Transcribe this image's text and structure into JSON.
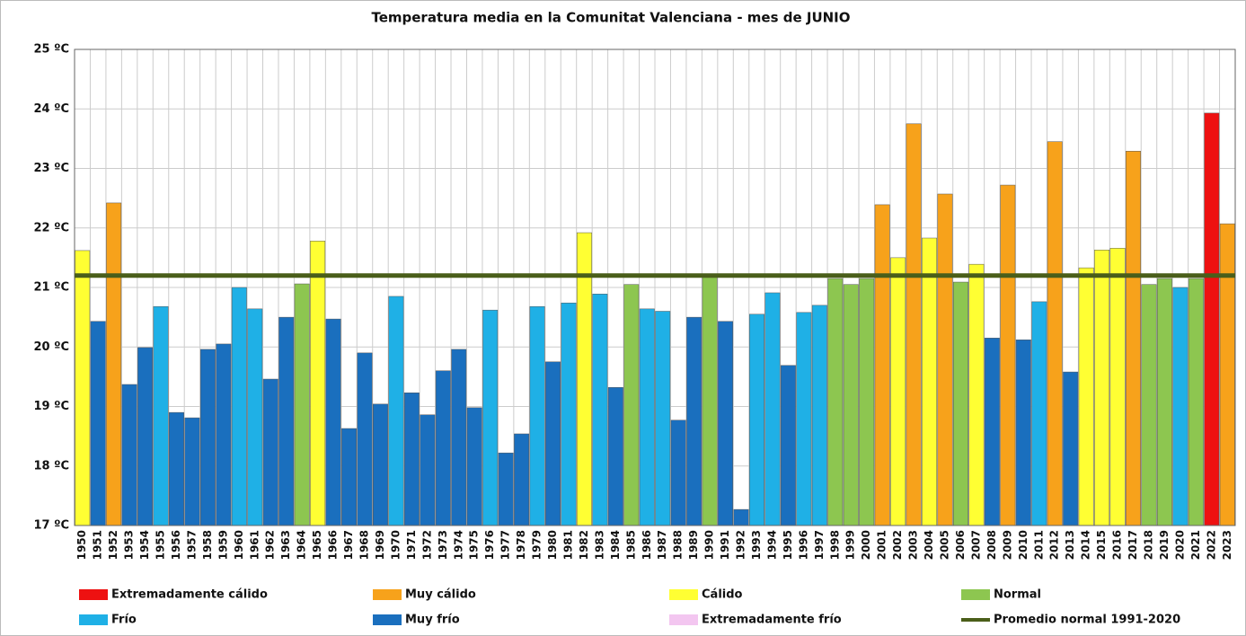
{
  "chart_data": {
    "type": "bar",
    "title": "Temperatura media en la Comunitat Valenciana - mes de JUNIO",
    "categories": [
      "1950",
      "1951",
      "1952",
      "1953",
      "1954",
      "1955",
      "1956",
      "1957",
      "1958",
      "1959",
      "1960",
      "1961",
      "1962",
      "1963",
      "1964",
      "1965",
      "1966",
      "1967",
      "1968",
      "1969",
      "1970",
      "1971",
      "1972",
      "1973",
      "1974",
      "1975",
      "1976",
      "1977",
      "1978",
      "1979",
      "1980",
      "1981",
      "1982",
      "1983",
      "1984",
      "1985",
      "1986",
      "1987",
      "1988",
      "1989",
      "1990",
      "1991",
      "1992",
      "1993",
      "1994",
      "1995",
      "1996",
      "1997",
      "1998",
      "1999",
      "2000",
      "2001",
      "2002",
      "2003",
      "2004",
      "2005",
      "2006",
      "2007",
      "2008",
      "2009",
      "2010",
      "2011",
      "2012",
      "2013",
      "2014",
      "2015",
      "2016",
      "2017",
      "2018",
      "2019",
      "2020",
      "2021",
      "2022",
      "2023"
    ],
    "series": [
      {
        "name": "Extremadamente cálido",
        "color": "#ee1111",
        "values": [
          null,
          null,
          null,
          null,
          null,
          null,
          null,
          null,
          null,
          null,
          null,
          null,
          null,
          null,
          null,
          null,
          null,
          null,
          null,
          null,
          null,
          null,
          null,
          null,
          null,
          null,
          null,
          null,
          null,
          null,
          null,
          null,
          null,
          null,
          null,
          null,
          null,
          null,
          null,
          null,
          null,
          null,
          null,
          null,
          null,
          null,
          null,
          null,
          null,
          null,
          null,
          null,
          null,
          null,
          null,
          null,
          null,
          null,
          null,
          null,
          null,
          null,
          null,
          null,
          null,
          null,
          null,
          null,
          null,
          null,
          null,
          null,
          23.93,
          null
        ]
      },
      {
        "name": "Muy cálido",
        "color": "#f7a21b",
        "values": [
          null,
          null,
          22.42,
          null,
          null,
          null,
          null,
          null,
          null,
          null,
          null,
          null,
          null,
          null,
          null,
          null,
          null,
          null,
          null,
          null,
          null,
          null,
          null,
          null,
          null,
          null,
          null,
          null,
          null,
          null,
          null,
          null,
          null,
          null,
          null,
          null,
          null,
          null,
          null,
          null,
          null,
          null,
          null,
          null,
          null,
          null,
          null,
          null,
          null,
          null,
          null,
          22.39,
          null,
          23.75,
          null,
          22.57,
          null,
          null,
          null,
          22.72,
          null,
          null,
          23.45,
          null,
          null,
          null,
          null,
          23.29,
          null,
          null,
          null,
          null,
          null,
          22.07
        ]
      },
      {
        "name": "Cálido",
        "color": "#ffff33",
        "values": [
          21.62,
          null,
          null,
          null,
          null,
          null,
          null,
          null,
          null,
          null,
          null,
          null,
          null,
          null,
          null,
          21.78,
          null,
          null,
          null,
          null,
          null,
          null,
          null,
          null,
          null,
          null,
          null,
          null,
          null,
          null,
          null,
          null,
          21.92,
          null,
          null,
          null,
          null,
          null,
          null,
          null,
          null,
          null,
          null,
          null,
          null,
          null,
          null,
          null,
          null,
          null,
          null,
          null,
          21.5,
          null,
          21.83,
          null,
          null,
          21.39,
          null,
          null,
          null,
          null,
          null,
          null,
          21.33,
          21.63,
          21.66,
          null,
          null,
          null,
          null,
          null,
          null,
          null
        ]
      },
      {
        "name": "Normal",
        "color": "#8dc650",
        "values": [
          null,
          null,
          null,
          null,
          null,
          null,
          null,
          null,
          null,
          null,
          null,
          null,
          null,
          null,
          21.06,
          null,
          null,
          null,
          null,
          null,
          null,
          null,
          null,
          null,
          null,
          null,
          null,
          null,
          null,
          null,
          null,
          null,
          null,
          null,
          null,
          21.05,
          null,
          null,
          null,
          null,
          21.18,
          null,
          null,
          null,
          null,
          null,
          null,
          null,
          21.15,
          21.05,
          21.15,
          null,
          null,
          null,
          null,
          null,
          21.09,
          null,
          null,
          null,
          null,
          null,
          null,
          null,
          null,
          null,
          null,
          null,
          21.05,
          21.15,
          null,
          21.15,
          null,
          null
        ]
      },
      {
        "name": "Frío",
        "color": "#1fb0e6",
        "values": [
          null,
          null,
          null,
          null,
          null,
          20.68,
          null,
          null,
          null,
          null,
          21.0,
          20.64,
          null,
          null,
          null,
          null,
          null,
          null,
          null,
          null,
          20.85,
          null,
          null,
          null,
          null,
          null,
          20.62,
          null,
          null,
          20.68,
          null,
          20.74,
          null,
          20.89,
          null,
          null,
          20.64,
          20.6,
          null,
          null,
          null,
          null,
          null,
          20.55,
          20.91,
          null,
          20.58,
          20.7,
          null,
          null,
          null,
          null,
          null,
          null,
          null,
          null,
          null,
          null,
          null,
          null,
          null,
          20.76,
          null,
          null,
          null,
          null,
          null,
          null,
          null,
          null,
          21.0,
          null,
          null,
          null
        ]
      },
      {
        "name": "Muy frío",
        "color": "#1a6fbe",
        "values": [
          null,
          20.43,
          null,
          19.37,
          19.99,
          null,
          18.9,
          18.81,
          19.96,
          20.05,
          null,
          null,
          19.46,
          20.5,
          null,
          null,
          20.47,
          18.63,
          19.9,
          19.04,
          null,
          19.23,
          18.86,
          19.6,
          19.96,
          18.98,
          null,
          18.22,
          18.54,
          null,
          19.75,
          null,
          null,
          null,
          19.32,
          null,
          null,
          null,
          18.77,
          20.5,
          null,
          20.43,
          17.27,
          null,
          null,
          19.69,
          null,
          null,
          null,
          null,
          null,
          null,
          null,
          null,
          null,
          null,
          null,
          null,
          20.15,
          null,
          20.12,
          null,
          null,
          19.58,
          null,
          null,
          null,
          null,
          null,
          null,
          null,
          null,
          null,
          null
        ]
      },
      {
        "name": "Extremadamente frío",
        "color": "#f3c6f0"
      }
    ],
    "reference_line": {
      "name": "Promedio normal 1991-2020",
      "value": 21.2,
      "color": "#4a5e1a"
    },
    "ylim": [
      17,
      25
    ],
    "yticks": [
      {
        "value": 17,
        "label": "17 ºC"
      },
      {
        "value": 18,
        "label": "18 ºC"
      },
      {
        "value": 19,
        "label": "19 ºC"
      },
      {
        "value": 20,
        "label": "20 ºC"
      },
      {
        "value": 21,
        "label": "21 ºC"
      },
      {
        "value": 22,
        "label": "22 ºC"
      },
      {
        "value": 23,
        "label": "23 ºC"
      },
      {
        "value": 24,
        "label": "24 ºC"
      },
      {
        "value": 25,
        "label": "25 ºC"
      }
    ],
    "grid": true
  }
}
